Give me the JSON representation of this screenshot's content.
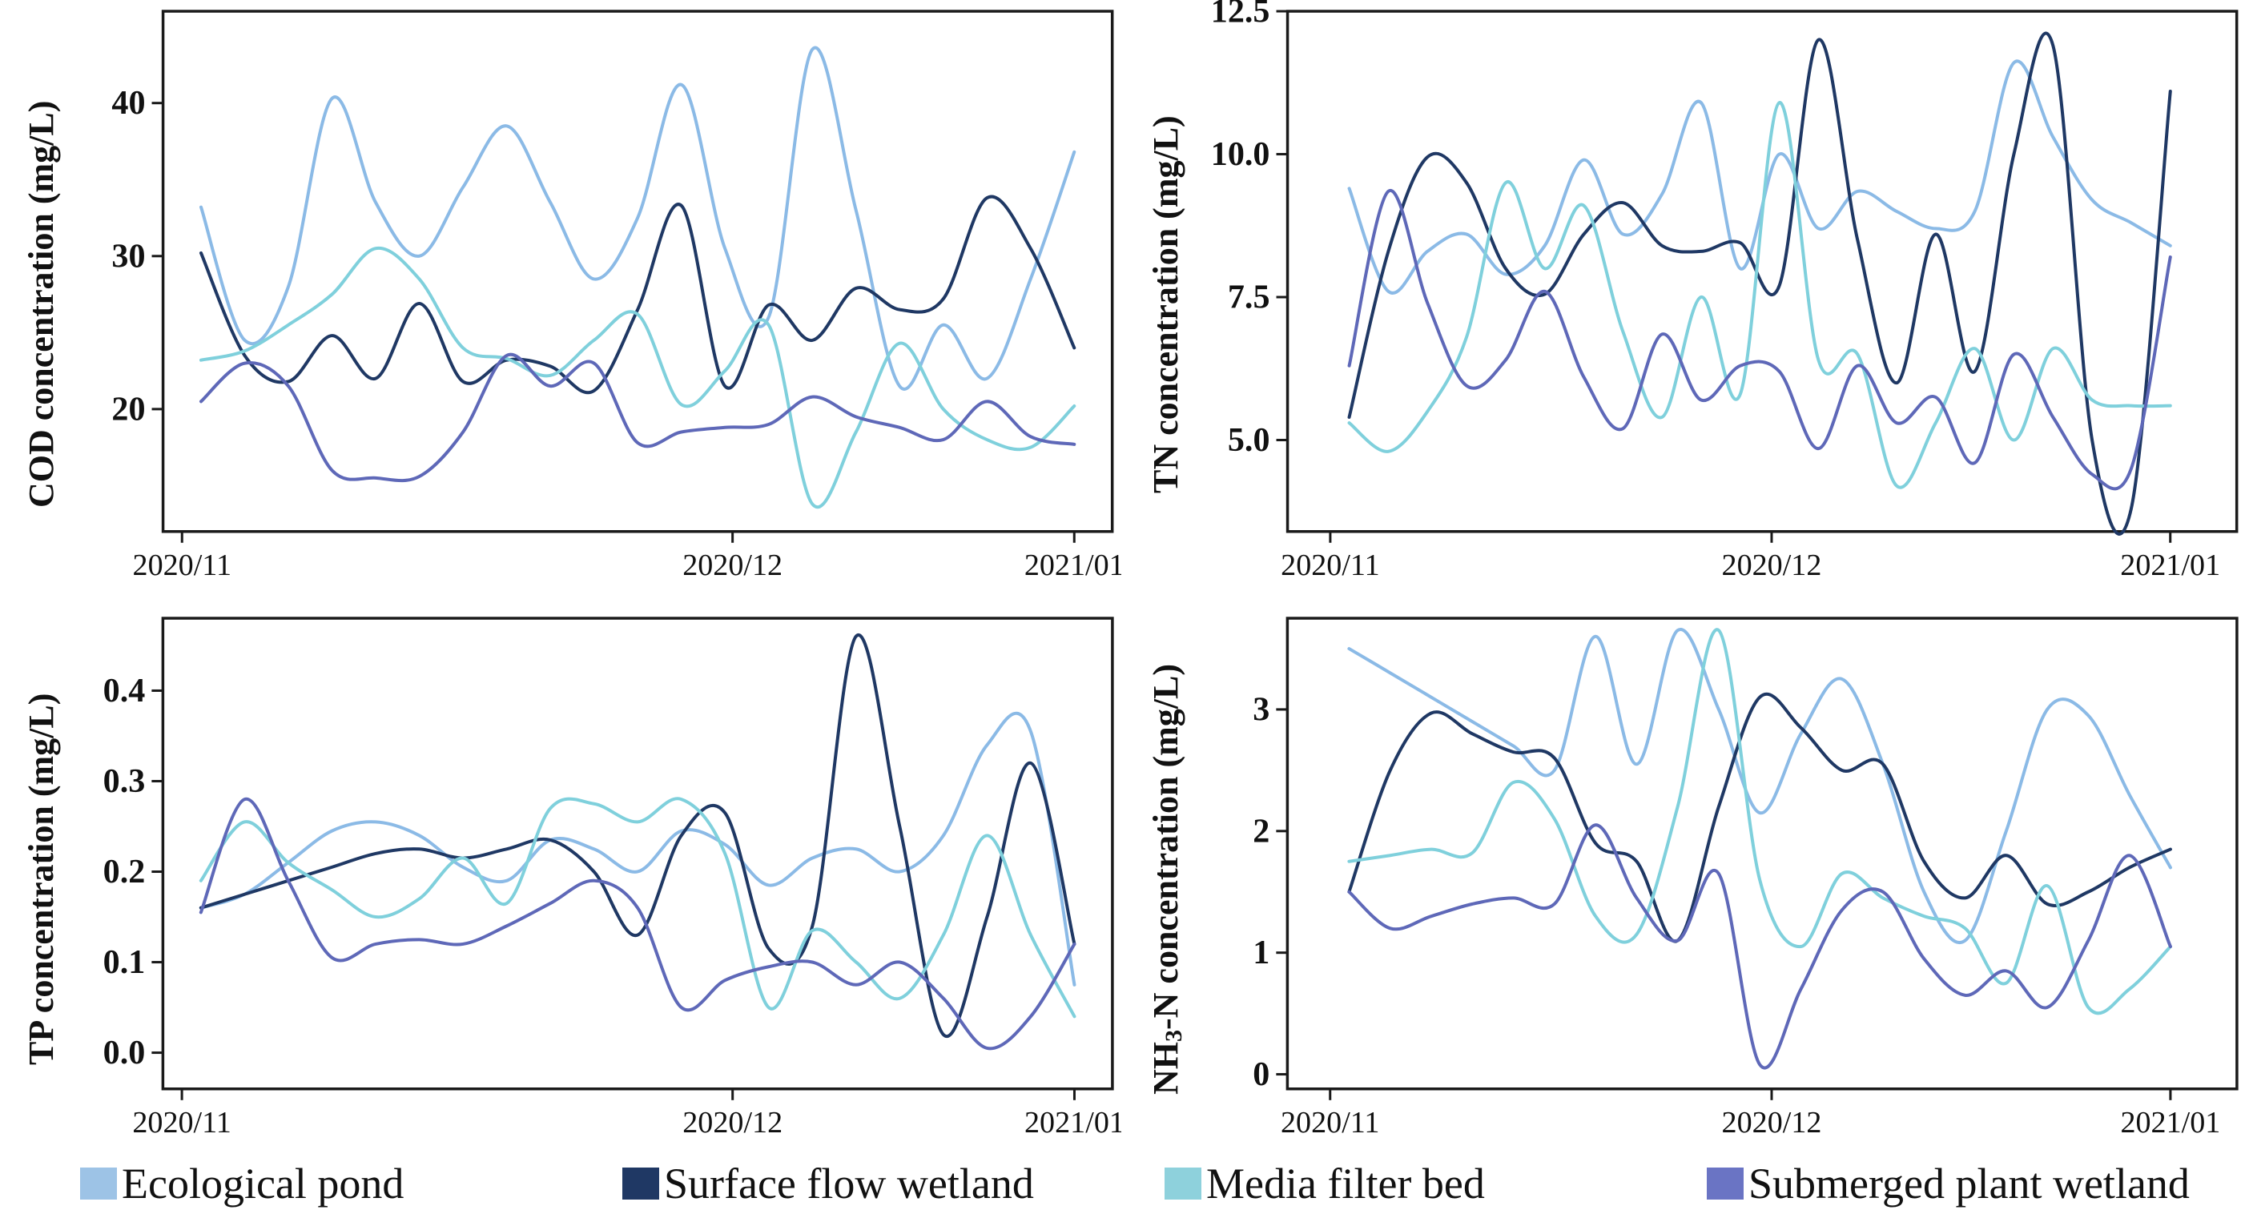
{
  "figure": {
    "background": "#ffffff",
    "axis_color": "#1a1a1a"
  },
  "legend": {
    "items": [
      {
        "label": "Ecological pond",
        "color": "#9dc3e6"
      },
      {
        "label": "Surface flow wetland",
        "color": "#1f3864"
      },
      {
        "label": "Media filter bed",
        "color": "#8ed1dc"
      },
      {
        "label": "Submerged plant wetland",
        "color": "#6a74c4"
      }
    ]
  },
  "chart_data": [
    {
      "type": "line",
      "title": "",
      "ylabel": "COD concentration (mg/L)",
      "xlabel": "",
      "ylim": [
        12,
        46
      ],
      "yticks": [
        {
          "v": 20,
          "label": "20"
        },
        {
          "v": 30,
          "label": "30"
        },
        {
          "v": 40,
          "label": "40"
        }
      ],
      "xticks": [
        {
          "f": 0.02,
          "label": "2020/11"
        },
        {
          "f": 0.6,
          "label": "2020/12"
        },
        {
          "f": 0.96,
          "label": "2021/01"
        }
      ],
      "grid": false,
      "series": [
        {
          "name": "Ecological pond",
          "color": "#8bbae6",
          "width": 4,
          "values": [
            33.2,
            24.5,
            28.0,
            40.3,
            33.5,
            30.0,
            34.5,
            38.5,
            33.5,
            28.5,
            32.5,
            41.2,
            30.5,
            26.0,
            43.5,
            33.0,
            21.5,
            25.5,
            22.0,
            28.5,
            36.8
          ]
        },
        {
          "name": "Surface flow wetland",
          "color": "#1f3864",
          "width": 4,
          "values": [
            30.2,
            23.5,
            21.8,
            24.8,
            22.0,
            26.9,
            21.8,
            23.2,
            22.8,
            21.2,
            26.5,
            33.3,
            21.5,
            26.8,
            24.5,
            27.9,
            26.5,
            27.2,
            33.8,
            30.5,
            24.0
          ]
        },
        {
          "name": "Media filter bed",
          "color": "#7fd0dc",
          "width": 4,
          "values": [
            23.2,
            23.8,
            25.5,
            27.5,
            30.5,
            28.5,
            24.0,
            23.3,
            22.2,
            24.5,
            26.2,
            20.3,
            22.5,
            25.5,
            13.8,
            18.5,
            24.3,
            20.0,
            18.0,
            17.5,
            20.2
          ]
        },
        {
          "name": "Submerged plant wetland",
          "color": "#5e68b8",
          "width": 4,
          "values": [
            20.5,
            23.0,
            21.5,
            16.0,
            15.5,
            15.6,
            18.5,
            23.5,
            21.5,
            23.0,
            17.8,
            18.5,
            18.8,
            19.0,
            20.8,
            19.5,
            18.8,
            18.0,
            20.5,
            18.2,
            17.7
          ]
        }
      ]
    },
    {
      "type": "line",
      "title": "",
      "ylabel": "TN concentration (mg/L)",
      "xlabel": "",
      "ylim": [
        3.4,
        12.5
      ],
      "yticks": [
        {
          "v": 5.0,
          "label": "5.0"
        },
        {
          "v": 7.5,
          "label": "7.5"
        },
        {
          "v": 10.0,
          "label": "10.0"
        },
        {
          "v": 12.5,
          "label": "12.5"
        }
      ],
      "xticks": [
        {
          "f": 0.045,
          "label": "2020/11"
        },
        {
          "f": 0.51,
          "label": "2020/12"
        },
        {
          "f": 0.93,
          "label": "2021/01"
        }
      ],
      "grid": false,
      "series": [
        {
          "name": "Ecological pond",
          "color": "#8bbae6",
          "width": 4,
          "values": [
            9.4,
            7.6,
            8.3,
            8.6,
            7.9,
            8.4,
            9.9,
            8.6,
            9.3,
            10.9,
            8.0,
            10.0,
            8.7,
            9.35,
            9.0,
            8.7,
            9.0,
            11.6,
            10.3,
            9.2,
            8.8,
            8.4
          ]
        },
        {
          "name": "Surface flow wetland",
          "color": "#1f3864",
          "width": 4,
          "values": [
            5.4,
            8.3,
            9.95,
            9.5,
            8.0,
            7.55,
            8.6,
            9.15,
            8.4,
            8.3,
            8.45,
            7.7,
            12.0,
            8.5,
            6.0,
            8.6,
            6.2,
            10.0,
            11.9,
            5.0,
            3.8,
            11.1
          ]
        },
        {
          "name": "Media filter bed",
          "color": "#7fd0dc",
          "width": 4,
          "values": [
            5.3,
            4.8,
            5.5,
            6.8,
            9.5,
            8.0,
            9.1,
            6.9,
            5.4,
            7.5,
            5.8,
            10.9,
            6.4,
            6.5,
            4.2,
            5.3,
            6.6,
            5.0,
            6.6,
            5.7,
            5.6,
            5.6
          ]
        },
        {
          "name": "Submerged plant wetland",
          "color": "#5e68b8",
          "width": 4,
          "values": [
            6.3,
            9.35,
            7.4,
            5.95,
            6.4,
            7.6,
            6.1,
            5.2,
            6.85,
            5.7,
            6.3,
            6.2,
            4.85,
            6.3,
            5.3,
            5.75,
            4.6,
            6.5,
            5.4,
            4.4,
            4.5,
            8.2
          ]
        }
      ]
    },
    {
      "type": "line",
      "title": "",
      "ylabel": "TP concentration (mg/L)",
      "xlabel": "",
      "ylim": [
        -0.04,
        0.48
      ],
      "yticks": [
        {
          "v": 0.0,
          "label": "0.0"
        },
        {
          "v": 0.1,
          "label": "0.1"
        },
        {
          "v": 0.2,
          "label": "0.2"
        },
        {
          "v": 0.3,
          "label": "0.3"
        },
        {
          "v": 0.4,
          "label": "0.4"
        }
      ],
      "xticks": [
        {
          "f": 0.02,
          "label": "2020/11"
        },
        {
          "f": 0.6,
          "label": "2020/12"
        },
        {
          "f": 0.96,
          "label": "2021/01"
        }
      ],
      "grid": false,
      "series": [
        {
          "name": "Ecological pond",
          "color": "#8bbae6",
          "width": 4,
          "values": [
            0.16,
            0.175,
            0.21,
            0.245,
            0.255,
            0.24,
            0.205,
            0.19,
            0.235,
            0.225,
            0.2,
            0.245,
            0.23,
            0.185,
            0.215,
            0.225,
            0.2,
            0.24,
            0.34,
            0.355,
            0.075
          ]
        },
        {
          "name": "Surface flow wetland",
          "color": "#1f3864",
          "width": 4,
          "values": [
            0.16,
            0.175,
            0.19,
            0.205,
            0.22,
            0.225,
            0.215,
            0.225,
            0.235,
            0.2,
            0.13,
            0.24,
            0.265,
            0.115,
            0.14,
            0.46,
            0.25,
            0.02,
            0.15,
            0.32,
            0.12
          ]
        },
        {
          "name": "Media filter bed",
          "color": "#7fd0dc",
          "width": 4,
          "values": [
            0.19,
            0.255,
            0.21,
            0.18,
            0.15,
            0.17,
            0.215,
            0.165,
            0.27,
            0.275,
            0.255,
            0.28,
            0.22,
            0.05,
            0.135,
            0.1,
            0.06,
            0.13,
            0.24,
            0.13,
            0.04
          ]
        },
        {
          "name": "Submerged plant wetland",
          "color": "#5e68b8",
          "width": 4,
          "values": [
            0.155,
            0.28,
            0.19,
            0.105,
            0.12,
            0.125,
            0.12,
            0.14,
            0.165,
            0.19,
            0.16,
            0.05,
            0.08,
            0.095,
            0.1,
            0.075,
            0.1,
            0.06,
            0.005,
            0.04,
            0.12
          ]
        }
      ]
    },
    {
      "type": "line",
      "title": "",
      "ylabel_pre": "NH",
      "ylabel_sub": "3",
      "ylabel_post": "-N concentration (mg/L)",
      "xlabel": "",
      "ylim": [
        -0.12,
        3.75
      ],
      "yticks": [
        {
          "v": 0,
          "label": "0"
        },
        {
          "v": 1,
          "label": "1"
        },
        {
          "v": 2,
          "label": "2"
        },
        {
          "v": 3,
          "label": "3"
        }
      ],
      "xticks": [
        {
          "f": 0.045,
          "label": "2020/11"
        },
        {
          "f": 0.51,
          "label": "2020/12"
        },
        {
          "f": 0.93,
          "label": "2021/01"
        }
      ],
      "grid": false,
      "series": [
        {
          "name": "Ecological pond",
          "color": "#8bbae6",
          "width": 4,
          "values": [
            3.5,
            3.3,
            3.1,
            2.9,
            2.7,
            2.5,
            3.6,
            2.55,
            3.65,
            3.0,
            2.15,
            2.8,
            3.25,
            2.55,
            1.5,
            1.1,
            2.0,
            3.0,
            2.95,
            2.3,
            1.7
          ]
        },
        {
          "name": "Surface flow wetland",
          "color": "#1f3864",
          "width": 4,
          "values": [
            1.5,
            2.5,
            2.97,
            2.8,
            2.65,
            2.6,
            1.9,
            1.75,
            1.1,
            2.2,
            3.1,
            2.85,
            2.5,
            2.55,
            1.75,
            1.45,
            1.8,
            1.4,
            1.5,
            1.7,
            1.85
          ]
        },
        {
          "name": "Media filter bed",
          "color": "#7fd0dc",
          "width": 4,
          "values": [
            1.75,
            1.8,
            1.85,
            1.82,
            2.4,
            2.1,
            1.3,
            1.15,
            2.2,
            3.65,
            1.6,
            1.05,
            1.65,
            1.45,
            1.3,
            1.2,
            0.75,
            1.55,
            0.55,
            0.7,
            1.05
          ]
        },
        {
          "name": "Submerged plant wetland",
          "color": "#5e68b8",
          "width": 4,
          "values": [
            1.5,
            1.2,
            1.3,
            1.4,
            1.45,
            1.4,
            2.05,
            1.45,
            1.1,
            1.65,
            0.08,
            0.7,
            1.35,
            1.5,
            0.95,
            0.65,
            0.85,
            0.55,
            1.1,
            1.8,
            1.05
          ]
        }
      ]
    }
  ]
}
